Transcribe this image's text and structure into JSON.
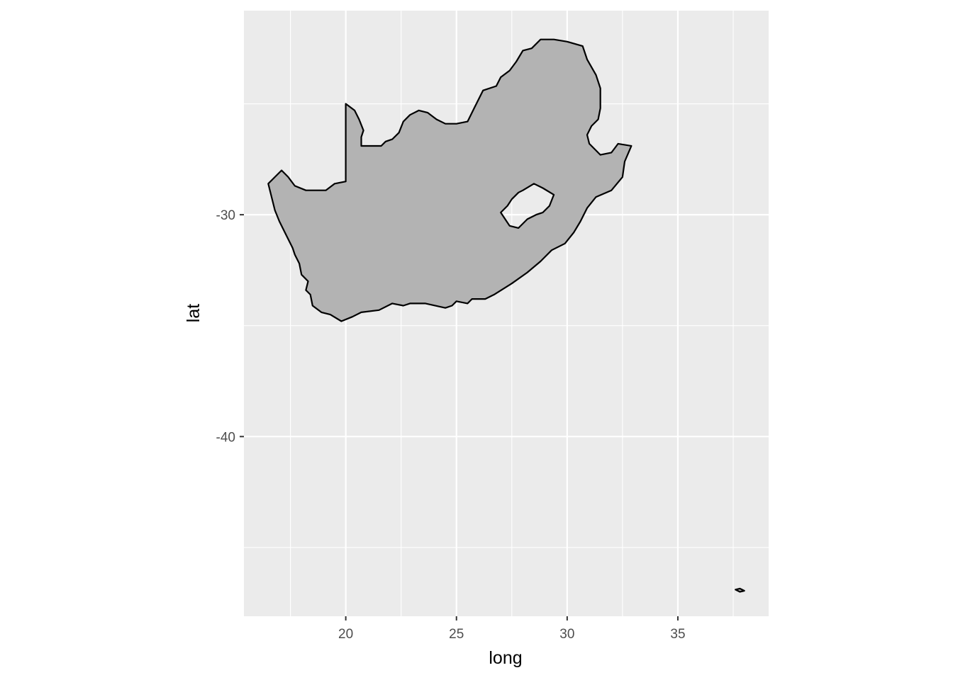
{
  "chart_data": {
    "type": "map",
    "title": "",
    "xlabel": "long",
    "ylabel": "lat",
    "xlim": [
      15.4,
      39.1
    ],
    "ylim": [
      -48.1,
      -20.8
    ],
    "x_major_ticks": [
      20,
      25,
      30,
      35
    ],
    "x_tick_labels": [
      "20",
      "25",
      "30",
      "35"
    ],
    "x_minor_ticks": [
      17.5,
      22.5,
      27.5,
      32.5,
      37.5
    ],
    "y_major_ticks": [
      -30,
      -40
    ],
    "y_tick_labels": [
      "-30",
      "-40"
    ],
    "y_minor_ticks": [
      -25,
      -35,
      -45
    ],
    "grid": true,
    "colors": {
      "panel_background": "#ebebeb",
      "grid": "#ffffff",
      "fill": "#b3b3b3",
      "outline": "#000000"
    },
    "polygons": [
      {
        "kind": "outer",
        "points": [
          [
            20.0,
            -25.0
          ],
          [
            20.4,
            -25.3
          ],
          [
            20.6,
            -25.7
          ],
          [
            20.8,
            -26.2
          ],
          [
            20.7,
            -26.5
          ],
          [
            20.7,
            -26.9
          ],
          [
            21.0,
            -26.9
          ],
          [
            21.6,
            -26.9
          ],
          [
            21.8,
            -26.7
          ],
          [
            22.1,
            -26.6
          ],
          [
            22.4,
            -26.3
          ],
          [
            22.6,
            -25.8
          ],
          [
            22.9,
            -25.5
          ],
          [
            23.3,
            -25.3
          ],
          [
            23.7,
            -25.4
          ],
          [
            24.1,
            -25.7
          ],
          [
            24.5,
            -25.9
          ],
          [
            25.0,
            -25.9
          ],
          [
            25.5,
            -25.8
          ],
          [
            25.8,
            -25.2
          ],
          [
            26.2,
            -24.4
          ],
          [
            26.8,
            -24.2
          ],
          [
            27.0,
            -23.8
          ],
          [
            27.4,
            -23.5
          ],
          [
            27.7,
            -23.1
          ],
          [
            28.0,
            -22.6
          ],
          [
            28.4,
            -22.5
          ],
          [
            28.8,
            -22.1
          ],
          [
            29.4,
            -22.1
          ],
          [
            30.0,
            -22.2
          ],
          [
            30.7,
            -22.4
          ],
          [
            30.9,
            -23.0
          ],
          [
            31.3,
            -23.7
          ],
          [
            31.5,
            -24.3
          ],
          [
            31.5,
            -25.2
          ],
          [
            31.4,
            -25.7
          ],
          [
            31.1,
            -26.0
          ],
          [
            30.9,
            -26.4
          ],
          [
            31.0,
            -26.8
          ],
          [
            31.5,
            -27.3
          ],
          [
            32.0,
            -27.2
          ],
          [
            32.3,
            -26.8
          ],
          [
            32.9,
            -26.9
          ],
          [
            32.6,
            -27.6
          ],
          [
            32.5,
            -28.3
          ],
          [
            32.0,
            -28.9
          ],
          [
            31.3,
            -29.2
          ],
          [
            30.9,
            -29.7
          ],
          [
            30.6,
            -30.3
          ],
          [
            30.3,
            -30.8
          ],
          [
            29.9,
            -31.3
          ],
          [
            29.3,
            -31.6
          ],
          [
            28.8,
            -32.1
          ],
          [
            28.2,
            -32.6
          ],
          [
            27.5,
            -33.1
          ],
          [
            26.7,
            -33.6
          ],
          [
            26.3,
            -33.8
          ],
          [
            25.7,
            -33.8
          ],
          [
            25.5,
            -34.0
          ],
          [
            25.0,
            -33.9
          ],
          [
            24.8,
            -34.1
          ],
          [
            24.5,
            -34.2
          ],
          [
            23.6,
            -34.0
          ],
          [
            22.9,
            -34.0
          ],
          [
            22.6,
            -34.1
          ],
          [
            22.1,
            -34.0
          ],
          [
            21.5,
            -34.3
          ],
          [
            20.7,
            -34.4
          ],
          [
            20.3,
            -34.6
          ],
          [
            19.8,
            -34.8
          ],
          [
            19.3,
            -34.5
          ],
          [
            18.9,
            -34.4
          ],
          [
            18.5,
            -34.1
          ],
          [
            18.4,
            -33.6
          ],
          [
            18.2,
            -33.4
          ],
          [
            18.3,
            -33.0
          ],
          [
            18.0,
            -32.7
          ],
          [
            17.9,
            -32.2
          ],
          [
            17.7,
            -31.8
          ],
          [
            17.6,
            -31.5
          ],
          [
            17.3,
            -30.9
          ],
          [
            17.0,
            -30.3
          ],
          [
            16.8,
            -29.8
          ],
          [
            16.5,
            -28.6
          ],
          [
            16.8,
            -28.3
          ],
          [
            17.1,
            -28.0
          ],
          [
            17.4,
            -28.3
          ],
          [
            17.7,
            -28.7
          ],
          [
            18.2,
            -28.9
          ],
          [
            18.7,
            -28.9
          ],
          [
            19.1,
            -28.9
          ],
          [
            19.5,
            -28.6
          ],
          [
            20.0,
            -28.5
          ],
          [
            20.0,
            -25.0
          ]
        ]
      },
      {
        "kind": "hole",
        "points": [
          [
            28.5,
            -28.6
          ],
          [
            28.9,
            -28.8
          ],
          [
            29.4,
            -29.1
          ],
          [
            29.2,
            -29.6
          ],
          [
            28.9,
            -29.9
          ],
          [
            28.6,
            -30.0
          ],
          [
            28.2,
            -30.2
          ],
          [
            27.8,
            -30.6
          ],
          [
            27.4,
            -30.5
          ],
          [
            27.2,
            -30.2
          ],
          [
            27.0,
            -29.9
          ],
          [
            27.3,
            -29.6
          ],
          [
            27.5,
            -29.3
          ],
          [
            27.8,
            -29.0
          ],
          [
            28.0,
            -28.9
          ],
          [
            28.5,
            -28.6
          ]
        ]
      },
      {
        "kind": "outer",
        "points": [
          [
            37.6,
            -46.9
          ],
          [
            37.8,
            -46.85
          ],
          [
            38.0,
            -46.95
          ],
          [
            37.8,
            -47.0
          ],
          [
            37.6,
            -46.9
          ]
        ]
      }
    ]
  }
}
